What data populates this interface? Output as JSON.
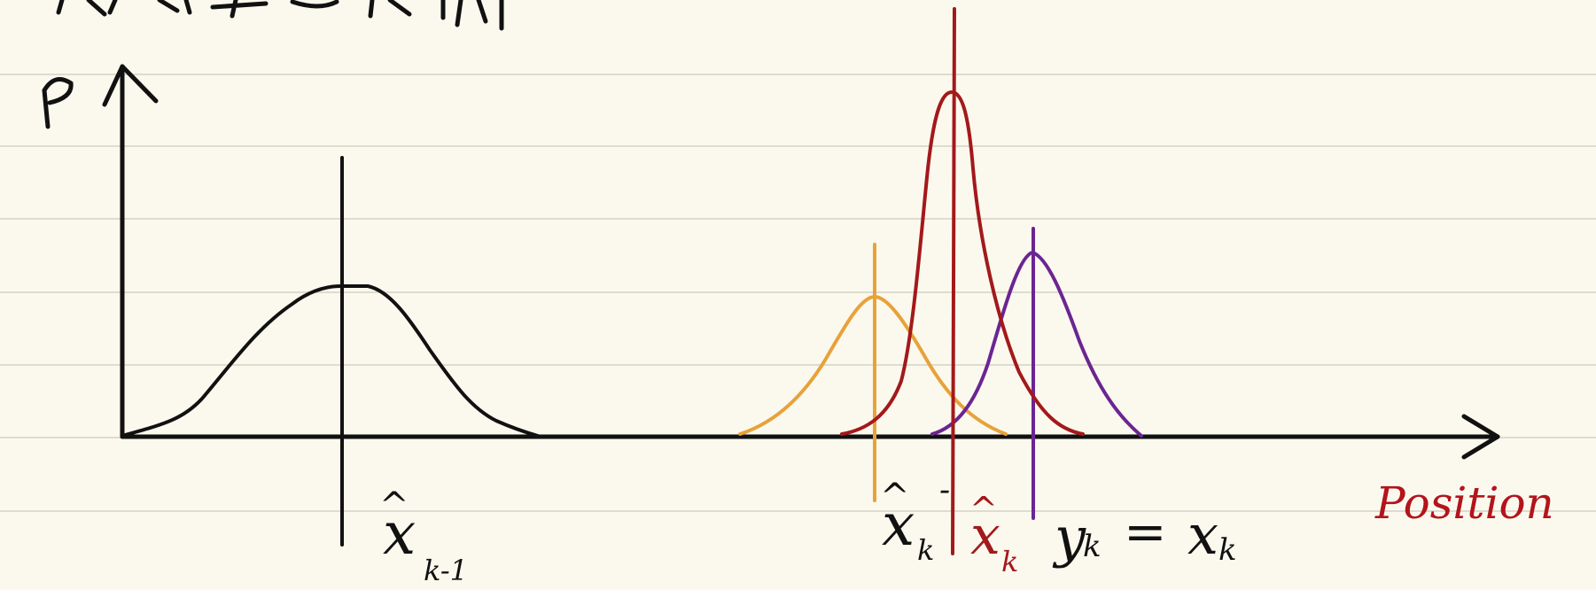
{
  "axes": {
    "y_label": "P",
    "x_label": "Position"
  },
  "distributions": [
    {
      "name": "previous-estimate",
      "color": "#111111",
      "label_base": "x",
      "label_hat": true,
      "label_sub": "k-1",
      "label_sup": ""
    },
    {
      "name": "prior-estimate",
      "color": "#e8a23a",
      "label_base": "x",
      "label_hat": true,
      "label_sub": "k",
      "label_sup": "-"
    },
    {
      "name": "posterior-estimate",
      "color": "#a3191b",
      "label_base": "x",
      "label_hat": true,
      "label_sub": "k",
      "label_sup": ""
    },
    {
      "name": "measurement",
      "color": "#6b2592",
      "label_base": "y",
      "label_hat": false,
      "label_sub": "k",
      "label_sup": ""
    }
  ],
  "equation": {
    "lhs": "y",
    "lhs_sub": "k",
    "op": "=",
    "rhs": "x",
    "rhs_sub": "k"
  },
  "colors": {
    "paper": "#fbf9ee",
    "rule_lines": "#dedbcf",
    "ink": "#111111",
    "position_label": "#b3141c"
  }
}
